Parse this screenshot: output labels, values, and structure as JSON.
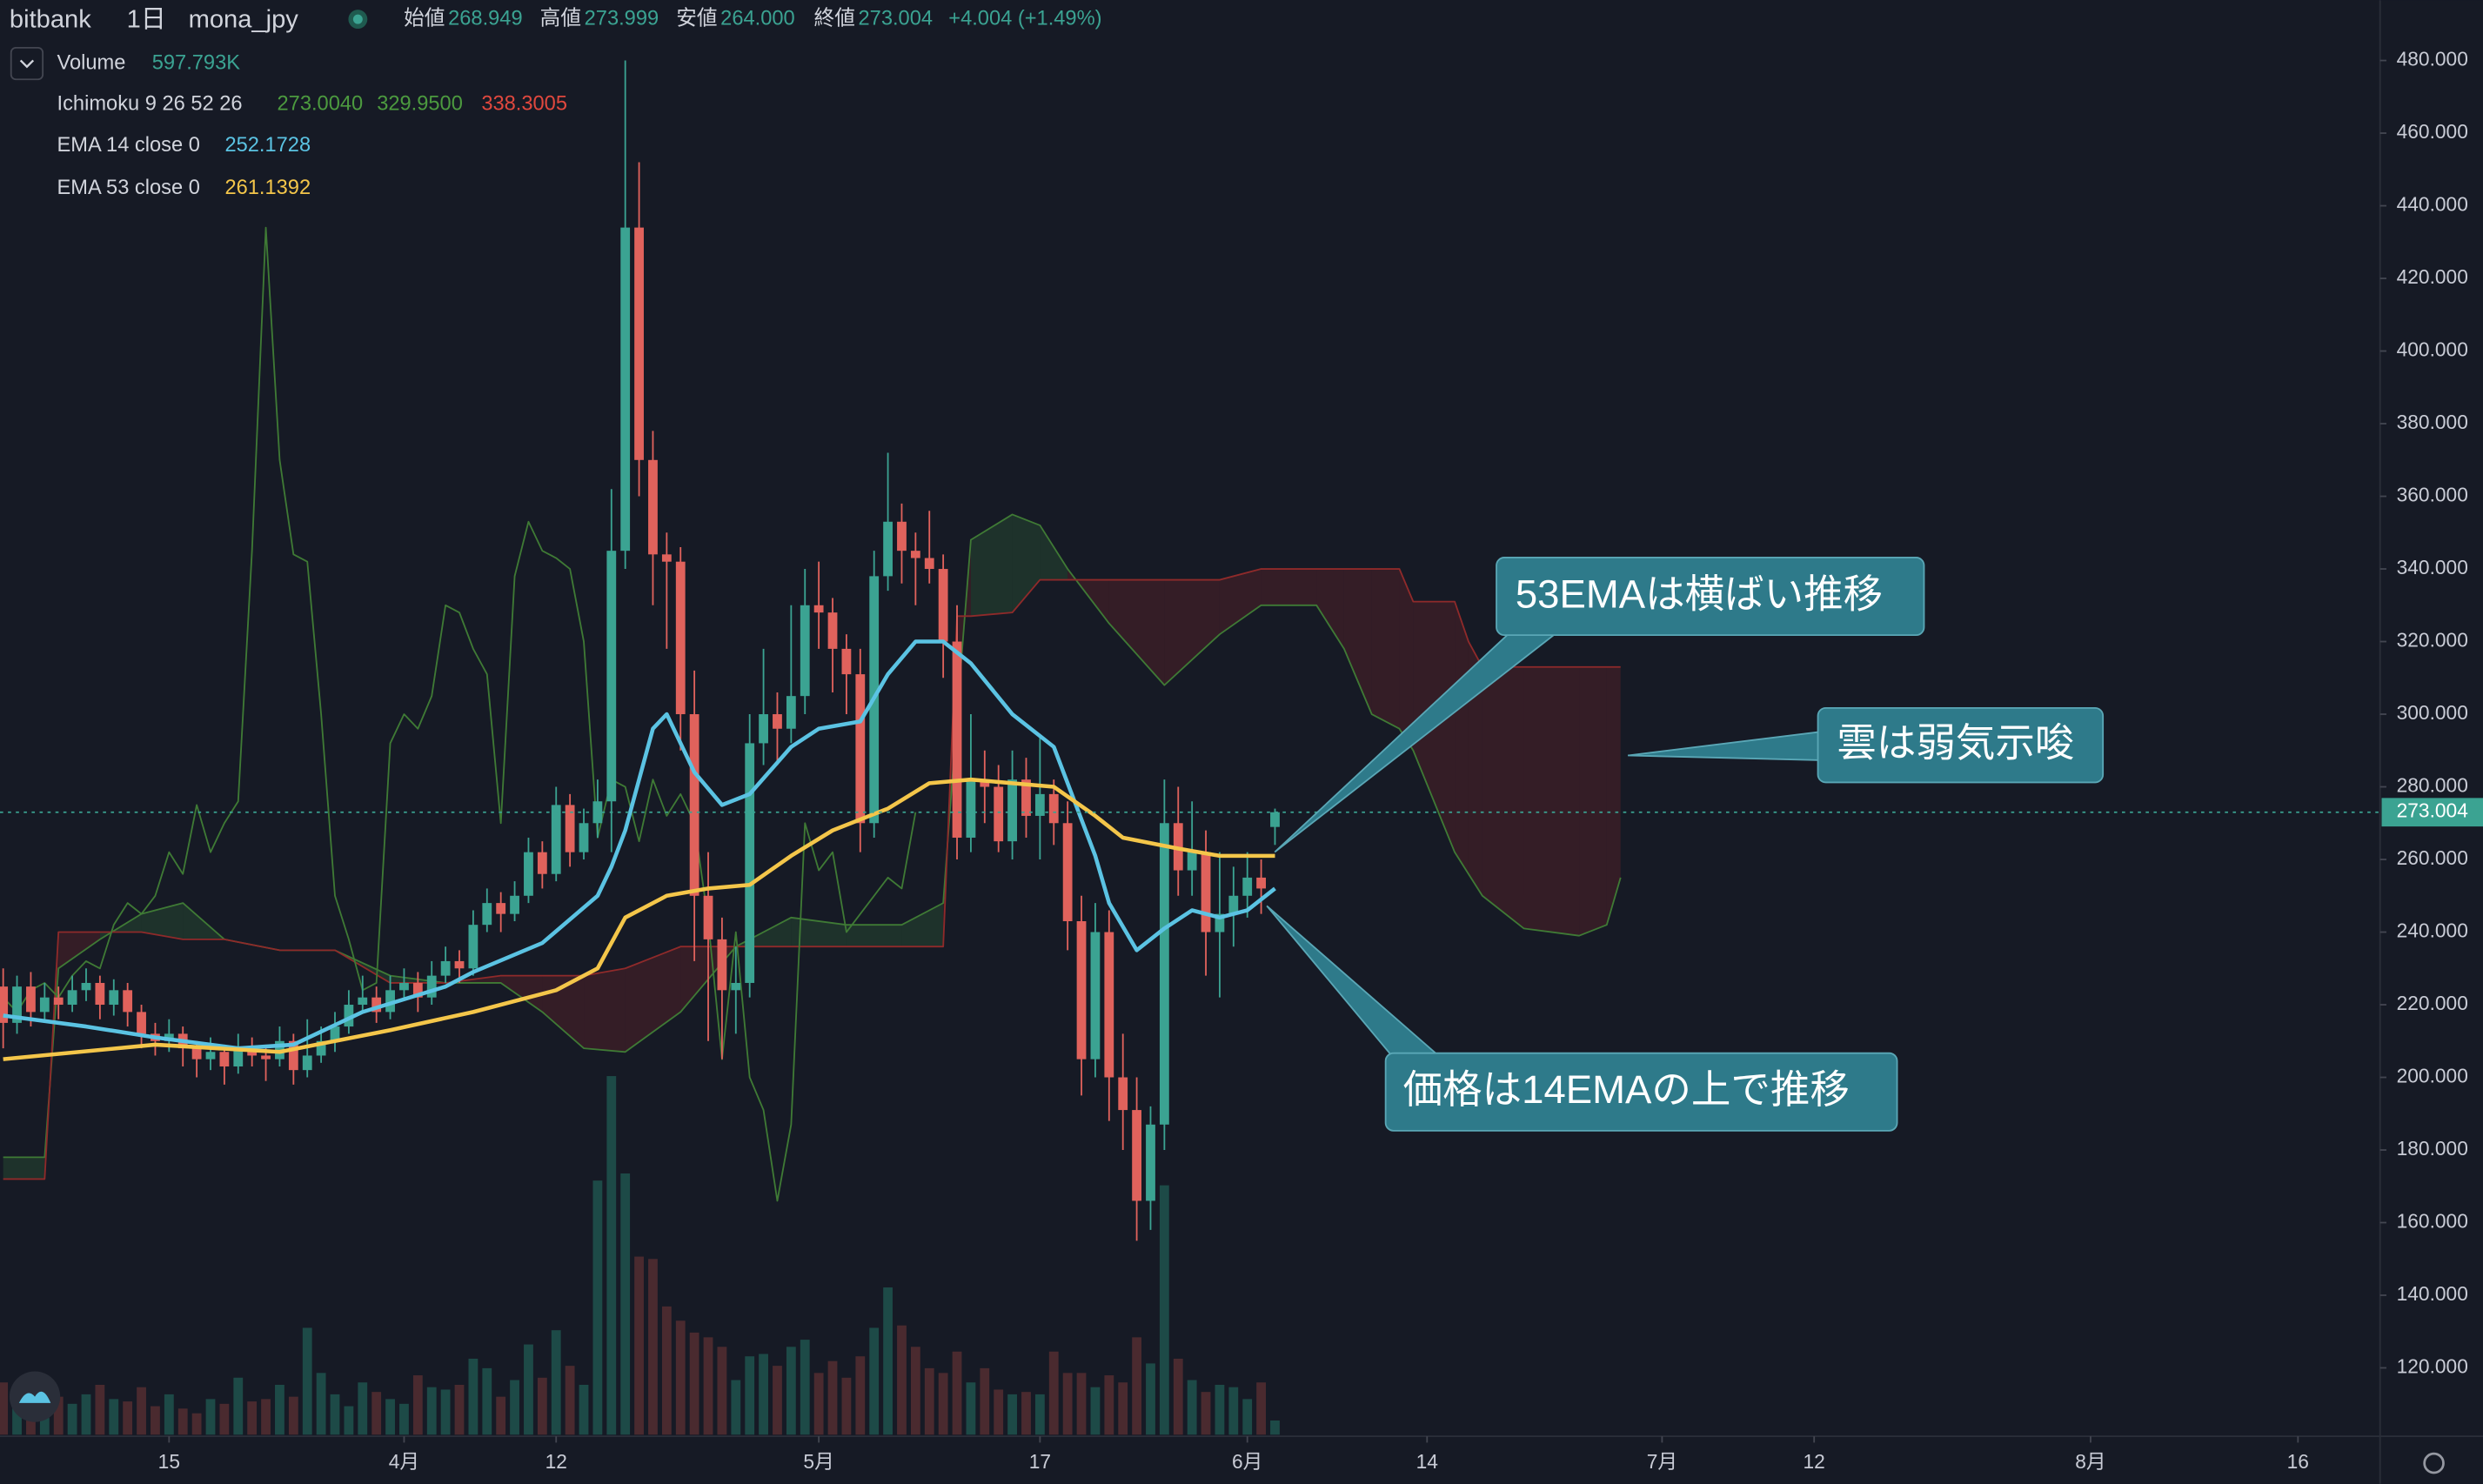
{
  "chart_data": {
    "type": "candlestick",
    "exchange": "bitbank",
    "interval": "1日",
    "symbol": "mona_jpy",
    "ohlc_names": [
      "始値",
      "高値",
      "安値",
      "終値"
    ],
    "ohlc_labels": [
      "268.949",
      "273.999",
      "264.000",
      "273.004"
    ],
    "change_label": "+4.004 (+1.49%)",
    "up_color": "#3ba392",
    "down_color": "#e0625c",
    "candles": [
      [
        225,
        230,
        208,
        215
      ],
      [
        215,
        228,
        212,
        225
      ],
      [
        225,
        229,
        214,
        218
      ],
      [
        218,
        226,
        215,
        222
      ],
      [
        222,
        225,
        216,
        220
      ],
      [
        220,
        228,
        218,
        224
      ],
      [
        224,
        230,
        221,
        226
      ],
      [
        226,
        228,
        216,
        220
      ],
      [
        220,
        227,
        217,
        224
      ],
      [
        224,
        226,
        214,
        218
      ],
      [
        218,
        220,
        208,
        212
      ],
      [
        212,
        215,
        206,
        210
      ],
      [
        210,
        216,
        207,
        212
      ],
      [
        212,
        214,
        203,
        208
      ],
      [
        208,
        210,
        200,
        205
      ],
      [
        205,
        211,
        202,
        207
      ],
      [
        207,
        209,
        198,
        203
      ],
      [
        203,
        212,
        201,
        208
      ],
      [
        208,
        211,
        203,
        206
      ],
      [
        206,
        209,
        199,
        205
      ],
      [
        205,
        214,
        203,
        210
      ],
      [
        210,
        212,
        198,
        202
      ],
      [
        202,
        216,
        200,
        206
      ],
      [
        206,
        214,
        204,
        210
      ],
      [
        210,
        218,
        207,
        214
      ],
      [
        214,
        224,
        212,
        220
      ],
      [
        220,
        228,
        218,
        222
      ],
      [
        222,
        225,
        215,
        218
      ],
      [
        218,
        228,
        216,
        224
      ],
      [
        224,
        230,
        221,
        226
      ],
      [
        226,
        229,
        218,
        222
      ],
      [
        222,
        232,
        220,
        228
      ],
      [
        228,
        236,
        226,
        232
      ],
      [
        232,
        235,
        226,
        230
      ],
      [
        230,
        246,
        228,
        242
      ],
      [
        242,
        252,
        240,
        248
      ],
      [
        248,
        251,
        240,
        245
      ],
      [
        245,
        254,
        243,
        250
      ],
      [
        250,
        266,
        248,
        262
      ],
      [
        262,
        265,
        252,
        256
      ],
      [
        256,
        280,
        254,
        275
      ],
      [
        275,
        278,
        258,
        262
      ],
      [
        262,
        274,
        260,
        270
      ],
      [
        270,
        282,
        266,
        276
      ],
      [
        276,
        362,
        262,
        345
      ],
      [
        345,
        480,
        340,
        434
      ],
      [
        434,
        452,
        360,
        370
      ],
      [
        370,
        378,
        330,
        344
      ],
      [
        344,
        350,
        318,
        342
      ],
      [
        342,
        346,
        290,
        300
      ],
      [
        300,
        312,
        232,
        250
      ],
      [
        250,
        262,
        210,
        238
      ],
      [
        238,
        244,
        205,
        224
      ],
      [
        224,
        236,
        212,
        226
      ],
      [
        226,
        300,
        222,
        292
      ],
      [
        292,
        318,
        286,
        300
      ],
      [
        300,
        306,
        286,
        296
      ],
      [
        296,
        330,
        292,
        305
      ],
      [
        305,
        340,
        300,
        330
      ],
      [
        330,
        342,
        318,
        328
      ],
      [
        328,
        332,
        306,
        318
      ],
      [
        318,
        322,
        300,
        311
      ],
      [
        311,
        318,
        262,
        270
      ],
      [
        270,
        345,
        266,
        338
      ],
      [
        338,
        372,
        334,
        353
      ],
      [
        353,
        358,
        336,
        345
      ],
      [
        345,
        350,
        330,
        343
      ],
      [
        343,
        356,
        336,
        340
      ],
      [
        340,
        344,
        310,
        320
      ],
      [
        320,
        330,
        260,
        266
      ],
      [
        266,
        300,
        262,
        282
      ],
      [
        282,
        290,
        270,
        280
      ],
      [
        280,
        286,
        262,
        265
      ],
      [
        265,
        290,
        260,
        282
      ],
      [
        282,
        288,
        266,
        272
      ],
      [
        272,
        294,
        260,
        278
      ],
      [
        278,
        282,
        264,
        270
      ],
      [
        270,
        276,
        235,
        243
      ],
      [
        243,
        250,
        195,
        205
      ],
      [
        205,
        248,
        200,
        240
      ],
      [
        240,
        246,
        188,
        200
      ],
      [
        200,
        212,
        180,
        191
      ],
      [
        191,
        200,
        155,
        166
      ],
      [
        166,
        192,
        158,
        187
      ],
      [
        187,
        282,
        180,
        270
      ],
      [
        270,
        280,
        250,
        257
      ],
      [
        257,
        276,
        250,
        262
      ],
      [
        262,
        268,
        228,
        240
      ],
      [
        240,
        262,
        222,
        245
      ],
      [
        245,
        258,
        236,
        250
      ],
      [
        250,
        262,
        244,
        255
      ],
      [
        255,
        260,
        245,
        252
      ],
      [
        268.949,
        273.999,
        264,
        273.004
      ]
    ],
    "volume": {
      "name": "Volume",
      "label": "597.793K",
      "up_color": "#1d4a47",
      "down_color": "#4a2a2f",
      "ylim": [
        0,
        20000
      ],
      "values": [
        2200,
        1800,
        1500,
        2400,
        1600,
        1300,
        1700,
        2100,
        1500,
        1400,
        2000,
        1200,
        1700,
        1100,
        900,
        1500,
        1300,
        2400,
        1400,
        1500,
        2100,
        1600,
        4500,
        2600,
        1700,
        1200,
        2200,
        1800,
        1500,
        1300,
        2500,
        2000,
        1900,
        2100,
        3200,
        2800,
        1600,
        2300,
        3800,
        2400,
        4400,
        2900,
        2100,
        10700,
        15100,
        11000,
        7500,
        7400,
        5400,
        4800,
        4300,
        4100,
        3700,
        2300,
        3300,
        3400,
        2900,
        3700,
        4000,
        2600,
        3100,
        2400,
        3300,
        4500,
        6200,
        4600,
        3700,
        2800,
        2600,
        3500,
        2200,
        2800,
        1900,
        1700,
        1800,
        1700,
        3500,
        2600,
        2600,
        2000,
        2500,
        2200,
        4100,
        3000,
        10500,
        3200,
        2300,
        1800,
        2100,
        2000,
        1500,
        2200,
        597.793
      ]
    },
    "ichimoku": {
      "name": "Ichimoku 9 26 52 26",
      "legend_labels": [
        "273.0040",
        "329.9500",
        "338.3005"
      ],
      "legend_colors": [
        "#4c9a3f",
        "#4c9a3f",
        "#e0483e"
      ],
      "lagging_shift": 26,
      "lagging_color": "#3f7a35",
      "span_a_color": "#3f7a35",
      "span_b_color": "#8f2a2a",
      "up_fill": "rgba(67,160,71,0.18)",
      "down_fill": "rgba(160,40,45,0.22)",
      "x": [
        0,
        3,
        4,
        7,
        10,
        13,
        16,
        20,
        24,
        28,
        32,
        36,
        39,
        42,
        45,
        49,
        53,
        57,
        61,
        65,
        68,
        69,
        70,
        73,
        75,
        77,
        80,
        84,
        88,
        91,
        95,
        97,
        99,
        101,
        102,
        105,
        106,
        107,
        110,
        114,
        116,
        117
      ],
      "span_a": [
        178,
        178,
        230,
        238,
        245,
        248,
        238,
        235,
        235,
        228,
        226,
        226,
        218,
        208,
        207,
        218,
        236,
        244,
        242,
        242,
        248,
        300,
        348,
        355,
        352,
        340,
        325,
        308,
        322,
        330,
        330,
        318,
        300,
        296,
        290,
        262,
        256,
        250,
        241,
        239,
        242,
        255
      ],
      "span_b": [
        172,
        172,
        240,
        240,
        240,
        238,
        238,
        235,
        235,
        226,
        226,
        228,
        228,
        228,
        230,
        236,
        236,
        236,
        236,
        236,
        236,
        327,
        327,
        328,
        337,
        337,
        337,
        337,
        337,
        340,
        340,
        340,
        340,
        340,
        331,
        331,
        320,
        313,
        313,
        313,
        313,
        313
      ]
    },
    "ema": [
      {
        "name": "EMA 14 close 0",
        "label": "252.1728",
        "color": "#5bc3e3",
        "x": [
          0,
          6,
          11,
          17,
          21,
          26,
          32,
          34,
          39,
          43,
          44,
          45,
          46,
          47,
          48,
          50,
          52,
          54,
          57,
          59,
          62,
          64,
          66,
          68,
          70,
          73,
          76,
          79,
          80,
          82,
          84,
          86,
          88,
          90,
          92
        ],
        "values": [
          217,
          214,
          211,
          208,
          209,
          218,
          225,
          229,
          237,
          250,
          258,
          268,
          282,
          296,
          300,
          284,
          275,
          278,
          291,
          296,
          298,
          311,
          320,
          320,
          314,
          300,
          291,
          261,
          248,
          235,
          241,
          246,
          244,
          246,
          252
        ]
      },
      {
        "name": "EMA 53 close 0",
        "label": "261.1392",
        "color": "#f4c64a",
        "x": [
          0,
          11,
          20,
          28,
          34,
          40,
          43,
          45,
          48,
          51,
          54,
          57,
          60,
          64,
          67,
          70,
          73,
          76,
          79,
          81,
          85,
          88,
          92
        ],
        "values": [
          205,
          209,
          207,
          213,
          218,
          224,
          230,
          244,
          250,
          252,
          253,
          261,
          268,
          274,
          281,
          282,
          281,
          280,
          272,
          266,
          263,
          261,
          261
        ]
      }
    ],
    "xlim": [
      -0.23,
      171.94
    ],
    "xticks": [
      {
        "value": 12,
        "label": "15"
      },
      {
        "value": 29,
        "label": "4月"
      },
      {
        "value": 40,
        "label": "12"
      },
      {
        "value": 59,
        "label": "5月"
      },
      {
        "value": 75,
        "label": "17"
      },
      {
        "value": 90,
        "label": "6月"
      },
      {
        "value": 103,
        "label": "14"
      },
      {
        "value": 120,
        "label": "7月"
      },
      {
        "value": 131,
        "label": "12"
      },
      {
        "value": 151,
        "label": "8月"
      },
      {
        "value": 166,
        "label": "16"
      }
    ],
    "ylim": [
      101.6,
      496.6
    ],
    "yticks": [
      {
        "value": 120,
        "label": "120.000"
      },
      {
        "value": 140,
        "label": "140.000"
      },
      {
        "value": 160,
        "label": "160.000"
      },
      {
        "value": 180,
        "label": "180.000"
      },
      {
        "value": 200,
        "label": "200.000"
      },
      {
        "value": 220,
        "label": "220.000"
      },
      {
        "value": 240,
        "label": "240.000"
      },
      {
        "value": 260,
        "label": "260.000"
      },
      {
        "value": 280,
        "label": "280.000"
      },
      {
        "value": 300,
        "label": "300.000"
      },
      {
        "value": 320,
        "label": "320.000"
      },
      {
        "value": 340,
        "label": "340.000"
      },
      {
        "value": 360,
        "label": "360.000"
      },
      {
        "value": 380,
        "label": "380.000"
      },
      {
        "value": 400,
        "label": "400.000"
      },
      {
        "value": 420,
        "label": "420.000"
      },
      {
        "value": 440,
        "label": "440.000"
      },
      {
        "value": 460,
        "label": "460.000"
      },
      {
        "value": 480,
        "label": "480.000"
      }
    ],
    "annotations": [
      "53EMAは横ばい推移",
      "雲は弱気示唆",
      "価格は14EMAの上で推移"
    ]
  }
}
